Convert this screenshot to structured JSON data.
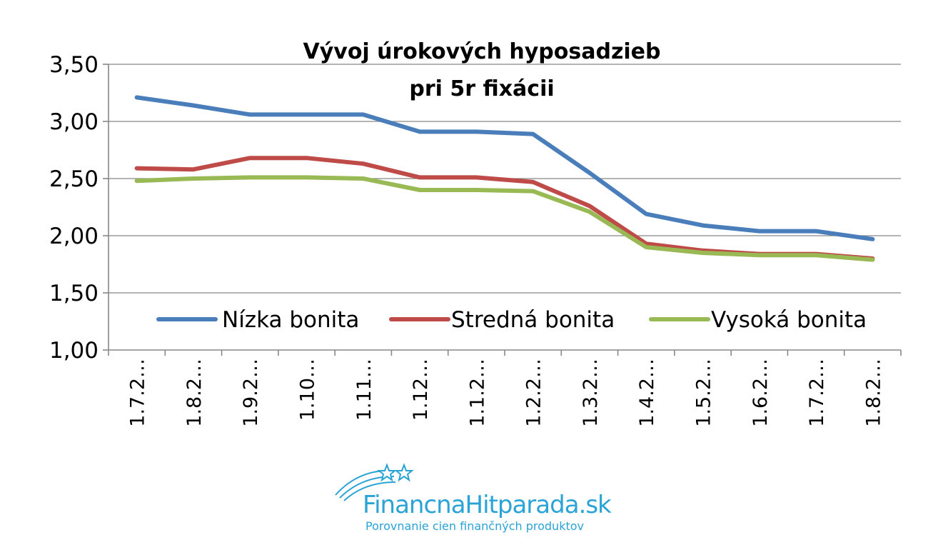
{
  "chart_data": {
    "type": "line",
    "title": [
      "Vývoj úrokových hyposadzieb",
      "pri 5r fixácii"
    ],
    "categories": [
      "1.7.2…",
      "1.8.2…",
      "1.9.2…",
      "1.10…",
      "1.11…",
      "1.12…",
      "1.1.2…",
      "1.2.2…",
      "1.3.2…",
      "1.4.2…",
      "1.5.2…",
      "1.6.2…",
      "1.7.2…",
      "1.8.2…"
    ],
    "ylim": [
      1.0,
      3.5
    ],
    "yticks": [
      "1,00",
      "1,50",
      "2,00",
      "2,50",
      "3,00",
      "3,50"
    ],
    "ytick_values": [
      1.0,
      1.5,
      2.0,
      2.5,
      3.0,
      3.5
    ],
    "grid": true,
    "legend_position": "inside-bottom",
    "series": [
      {
        "name": "Nízka bonita",
        "color": "#4a7ebb",
        "values": [
          3.21,
          3.14,
          3.06,
          3.06,
          3.06,
          2.91,
          2.91,
          2.89,
          2.55,
          2.19,
          2.09,
          2.04,
          2.04,
          1.97
        ]
      },
      {
        "name": "Stredná bonita",
        "color": "#be4b48",
        "values": [
          2.59,
          2.58,
          2.68,
          2.68,
          2.63,
          2.51,
          2.51,
          2.47,
          2.26,
          1.93,
          1.87,
          1.84,
          1.84,
          1.8
        ]
      },
      {
        "name": "Vysoká bonita",
        "color": "#98b954",
        "values": [
          2.48,
          2.5,
          2.51,
          2.51,
          2.5,
          2.4,
          2.4,
          2.39,
          2.21,
          1.9,
          1.85,
          1.83,
          1.83,
          1.79
        ]
      }
    ]
  },
  "logo": {
    "name": "FinancnaHitparada.sk",
    "tagline": "Porovnanie cien finančných produktov",
    "color": "#2aa3d6"
  }
}
